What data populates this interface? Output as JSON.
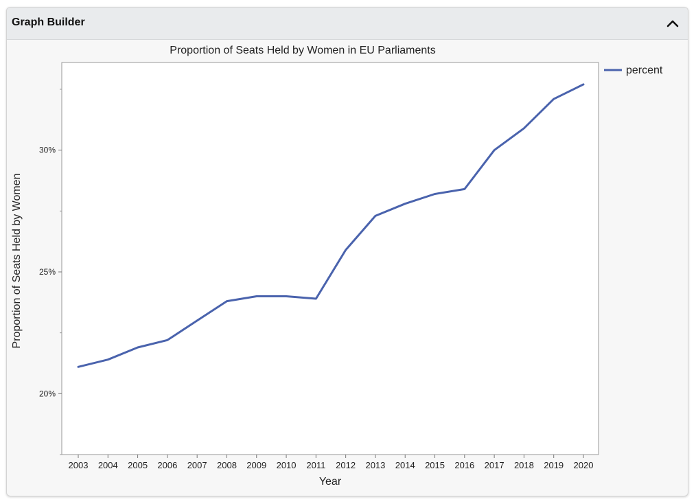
{
  "panel": {
    "title": "Graph Builder",
    "collapse_icon": "chevron-up-icon"
  },
  "chart_data": {
    "type": "line",
    "title": "Proportion of Seats Held by Women in EU Parliaments",
    "xlabel": "Year",
    "ylabel": "Proportion of Seats Held by Women",
    "categories": [
      "2003",
      "2004",
      "2005",
      "2006",
      "2007",
      "2008",
      "2009",
      "2010",
      "2011",
      "2012",
      "2013",
      "2014",
      "2015",
      "2016",
      "2017",
      "2018",
      "2019",
      "2020"
    ],
    "series": [
      {
        "name": "percent",
        "color": "#4a63ad",
        "values": [
          21.1,
          21.4,
          21.9,
          22.2,
          23.0,
          23.8,
          24.0,
          24.0,
          23.9,
          25.9,
          27.3,
          27.8,
          28.2,
          28.4,
          30.0,
          30.9,
          32.1,
          32.7
        ]
      }
    ],
    "ylim": [
      17.5,
      33.6
    ],
    "yticks": [
      20,
      25,
      30
    ],
    "ytick_labels": [
      "20%",
      "25%",
      "30%"
    ],
    "y_minor_ticks": [
      17.5,
      22.5,
      27.5,
      32.5
    ],
    "grid": false,
    "legend_position": "top-right"
  }
}
